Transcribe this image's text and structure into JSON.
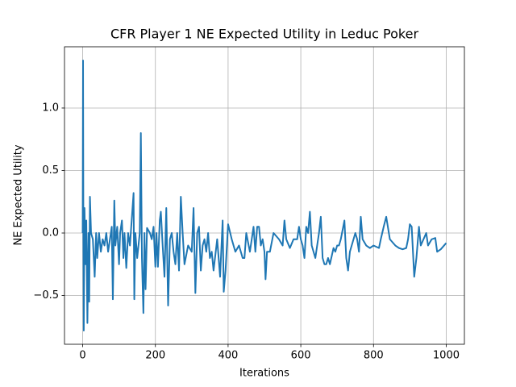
{
  "chart_data": {
    "type": "line",
    "title": "CFR Player 1 NE Expected Utility in Leduc Poker",
    "xlabel": "Iterations",
    "ylabel": "NE Expected Utility",
    "color": "#1f77b4",
    "grid": true,
    "xlim": [
      -50,
      1050
    ],
    "xticks": [
      0,
      200,
      400,
      600,
      800,
      1000
    ],
    "ylim": [
      -0.89,
      1.49
    ],
    "yticks": [
      {
        "value": -0.5,
        "label": "−0.5"
      },
      {
        "value": 0.0,
        "label": "0.0"
      },
      {
        "value": 0.5,
        "label": "0.5"
      },
      {
        "value": 1.0,
        "label": "1.0"
      }
    ],
    "x": [
      0,
      1,
      2,
      3,
      5,
      8,
      10,
      13,
      16,
      18,
      20,
      23,
      28,
      33,
      37,
      40,
      45,
      50,
      55,
      60,
      65,
      70,
      75,
      80,
      83,
      87,
      90,
      95,
      100,
      103,
      108,
      112,
      115,
      120,
      125,
      130,
      140,
      142,
      145,
      150,
      157,
      160,
      163,
      167,
      170,
      173,
      177,
      185,
      190,
      195,
      200,
      203,
      207,
      212,
      215,
      220,
      225,
      230,
      235,
      240,
      245,
      250,
      255,
      260,
      265,
      270,
      275,
      280,
      290,
      300,
      305,
      310,
      315,
      320,
      325,
      330,
      335,
      340,
      345,
      350,
      355,
      360,
      370,
      378,
      385,
      388,
      393,
      400,
      410,
      420,
      430,
      440,
      445,
      450,
      460,
      465,
      470,
      475,
      480,
      485,
      490,
      495,
      500,
      503,
      507,
      515,
      525,
      540,
      550,
      555,
      560,
      570,
      580,
      590,
      595,
      600,
      605,
      610,
      615,
      620,
      625,
      630,
      640,
      645,
      650,
      655,
      660,
      665,
      670,
      675,
      680,
      690,
      695,
      700,
      705,
      710,
      720,
      725,
      730,
      735,
      740,
      750,
      755,
      760,
      765,
      770,
      780,
      790,
      800,
      815,
      820,
      828,
      835,
      845,
      860,
      870,
      880,
      890,
      895,
      900,
      905,
      912,
      918,
      925,
      930,
      945,
      950,
      960,
      970,
      975,
      985,
      1000
    ],
    "values": [
      0.0,
      1.38,
      -0.05,
      -0.78,
      0.2,
      -0.25,
      0.1,
      -0.72,
      0.0,
      -0.55,
      0.29,
      0.0,
      -0.05,
      -0.35,
      0.0,
      -0.2,
      0.0,
      -0.15,
      -0.05,
      -0.1,
      0.0,
      -0.15,
      -0.05,
      0.05,
      -0.53,
      0.26,
      -0.1,
      0.05,
      -0.25,
      0.0,
      0.1,
      -0.2,
      0.0,
      -0.28,
      0.0,
      -0.1,
      0.32,
      -0.53,
      0.0,
      -0.2,
      0.0,
      0.8,
      -0.2,
      -0.64,
      0.0,
      -0.45,
      0.04,
      0.0,
      -0.05,
      0.05,
      -0.27,
      0.0,
      -0.27,
      0.1,
      0.17,
      -0.1,
      -0.35,
      0.2,
      -0.58,
      -0.05,
      0.0,
      -0.15,
      -0.25,
      0.0,
      -0.3,
      0.29,
      0.0,
      -0.25,
      -0.1,
      -0.15,
      0.2,
      -0.48,
      0.0,
      0.05,
      -0.3,
      -0.1,
      -0.05,
      -0.15,
      0.0,
      -0.2,
      -0.15,
      -0.3,
      -0.05,
      -0.35,
      0.1,
      -0.47,
      -0.3,
      0.07,
      -0.05,
      -0.15,
      -0.1,
      -0.2,
      -0.2,
      0.0,
      -0.15,
      -0.05,
      0.05,
      -0.15,
      0.05,
      0.05,
      -0.1,
      -0.05,
      -0.15,
      -0.37,
      -0.15,
      -0.15,
      0.0,
      -0.05,
      -0.1,
      0.1,
      -0.05,
      -0.12,
      -0.05,
      -0.05,
      0.05,
      -0.05,
      -0.1,
      -0.2,
      0.05,
      0.0,
      0.17,
      -0.1,
      -0.2,
      -0.1,
      0.0,
      0.13,
      -0.2,
      -0.25,
      -0.25,
      -0.2,
      -0.25,
      -0.12,
      -0.15,
      -0.1,
      -0.1,
      -0.05,
      0.1,
      -0.2,
      -0.3,
      -0.15,
      -0.1,
      0.0,
      -0.05,
      -0.15,
      0.13,
      -0.05,
      -0.1,
      -0.12,
      -0.1,
      -0.12,
      -0.05,
      0.05,
      0.13,
      -0.05,
      -0.1,
      -0.12,
      -0.13,
      -0.12,
      -0.05,
      0.07,
      0.05,
      -0.35,
      -0.2,
      0.05,
      -0.1,
      0.0,
      -0.1,
      -0.05,
      -0.04,
      -0.15,
      -0.13,
      -0.08
    ]
  }
}
